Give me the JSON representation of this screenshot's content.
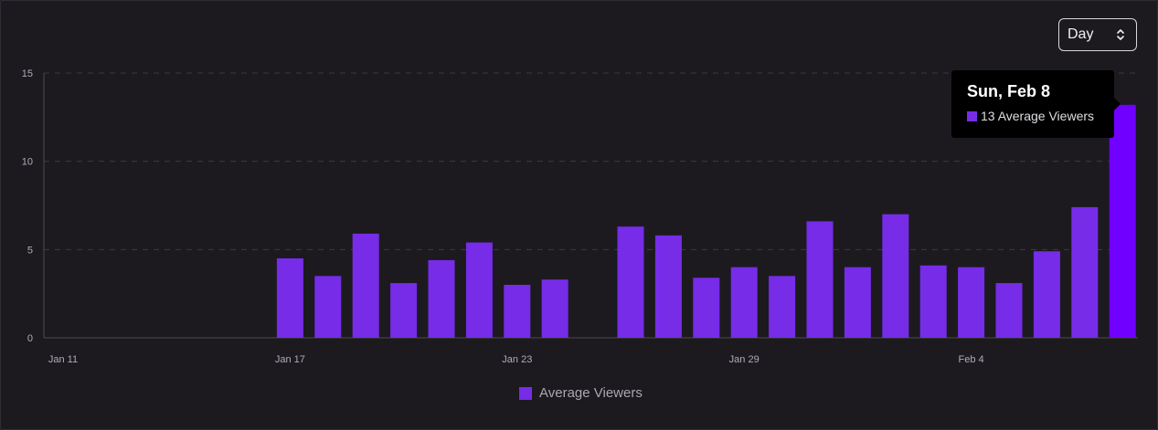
{
  "interval_select": {
    "value": "Day",
    "icon": "updown-chevron-icon"
  },
  "tooltip": {
    "title": "Sun, Feb 8",
    "value_text": "13 Average Viewers"
  },
  "legend": {
    "label": "Average Viewers"
  },
  "colors": {
    "bar": "#772ce8",
    "bar_active": "#7000ff",
    "background": "#1c1a1f",
    "grid": "#3b3a40",
    "tick_text": "#adadb8"
  },
  "chart_data": {
    "type": "bar",
    "title": "",
    "xlabel": "",
    "ylabel": "",
    "ylim": [
      0,
      15
    ],
    "yticks": [
      "0",
      "5",
      "10",
      "15"
    ],
    "grid": true,
    "legend_position": "bottom-center",
    "x_tick_labels": [
      "Jan 11",
      "Jan 17",
      "Jan 23",
      "Jan 29",
      "Feb 4"
    ],
    "categories": [
      "Jan 11",
      "Jan 12",
      "Jan 13",
      "Jan 14",
      "Jan 15",
      "Jan 16",
      "Jan 17",
      "Jan 18",
      "Jan 19",
      "Jan 20",
      "Jan 21",
      "Jan 22",
      "Jan 23",
      "Jan 24",
      "Jan 25",
      "Jan 26",
      "Jan 27",
      "Jan 28",
      "Jan 29",
      "Jan 30",
      "Jan 31",
      "Feb 1",
      "Feb 2",
      "Feb 3",
      "Feb 4",
      "Feb 5",
      "Feb 6",
      "Feb 7",
      "Feb 8"
    ],
    "series": [
      {
        "name": "Average Viewers",
        "values": [
          0,
          0,
          0,
          0,
          0,
          0,
          4.5,
          3.5,
          5.9,
          3.1,
          4.4,
          5.4,
          3.0,
          3.3,
          0,
          6.3,
          5.8,
          3.4,
          4.0,
          3.5,
          6.6,
          4.0,
          7.0,
          4.1,
          4.0,
          3.1,
          4.9,
          7.4,
          13.2
        ]
      }
    ],
    "highlighted": "Feb 8"
  }
}
